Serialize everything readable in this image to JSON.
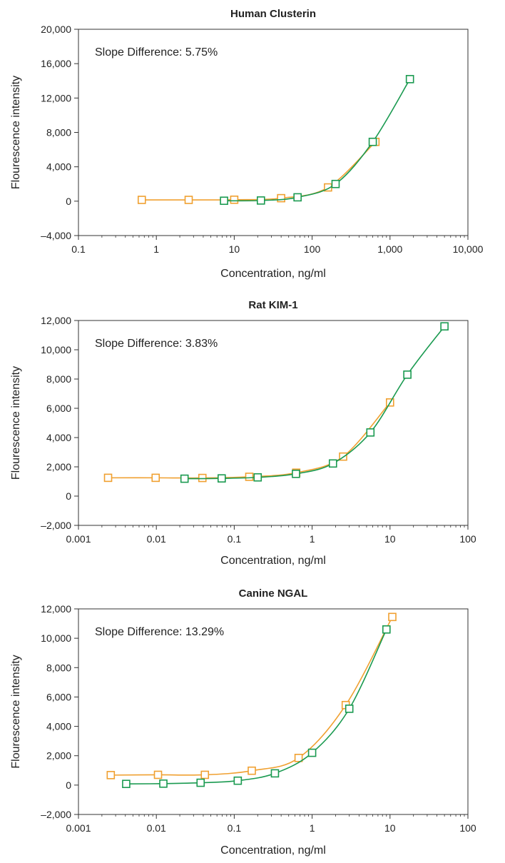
{
  "chart_data": [
    {
      "type": "line",
      "title": "Human Clusterin",
      "xlabel": "Concentration, ng/ml",
      "ylabel": "Flourescence intensity",
      "x_scale": "log",
      "xlim": [
        0.1,
        10000
      ],
      "ylim": [
        -4000,
        20000
      ],
      "x_ticks": [
        0.1,
        1,
        10,
        100,
        1000,
        10000
      ],
      "x_tick_labels": [
        "0.1",
        "1",
        "10",
        "100",
        "1,000",
        "10,000"
      ],
      "y_ticks": [
        -4000,
        0,
        4000,
        8000,
        12000,
        16000,
        20000
      ],
      "y_tick_labels": [
        "–4,000",
        "0",
        "4,000",
        "8,000",
        "12,000",
        "16,000",
        "20,000"
      ],
      "annotation": "Slope Difference: 5.75%",
      "grid": false,
      "series": [
        {
          "color": "#f0a030",
          "points": [
            [
              0.65,
              150
            ],
            [
              2.6,
              150
            ],
            [
              10,
              170
            ],
            [
              40,
              350
            ],
            [
              160,
              1600
            ],
            [
              650,
              6900
            ]
          ]
        },
        {
          "color": "#1a9a50",
          "points": [
            [
              7.4,
              50
            ],
            [
              22,
              80
            ],
            [
              65,
              450
            ],
            [
              200,
              2000
            ],
            [
              600,
              6900
            ],
            [
              1800,
              14200
            ]
          ]
        }
      ]
    },
    {
      "type": "line",
      "title": "Rat KIM-1",
      "xlabel": "Concentration, ng/ml",
      "ylabel": "Flourescence intensity",
      "x_scale": "log",
      "xlim": [
        0.001,
        100
      ],
      "ylim": [
        -2000,
        12000
      ],
      "x_ticks": [
        0.001,
        0.01,
        0.1,
        1,
        10,
        100
      ],
      "x_tick_labels": [
        "0.001",
        "0.01",
        "0.1",
        "1",
        "10",
        "100"
      ],
      "y_ticks": [
        -2000,
        0,
        2000,
        4000,
        6000,
        8000,
        10000,
        12000
      ],
      "y_tick_labels": [
        "–2,000",
        "0",
        "2,000",
        "4,000",
        "6,000",
        "8,000",
        "10,000",
        "12,000"
      ],
      "annotation": "Slope Difference: 3.83%",
      "grid": false,
      "series": [
        {
          "color": "#f0a030",
          "points": [
            [
              0.0024,
              1250
            ],
            [
              0.0098,
              1250
            ],
            [
              0.039,
              1240
            ],
            [
              0.156,
              1320
            ],
            [
              0.625,
              1600
            ],
            [
              2.5,
              2700
            ],
            [
              10,
              6400
            ]
          ]
        },
        {
          "color": "#1a9a50",
          "points": [
            [
              0.023,
              1190
            ],
            [
              0.069,
              1210
            ],
            [
              0.2,
              1280
            ],
            [
              0.62,
              1520
            ],
            [
              1.85,
              2230
            ],
            [
              5.6,
              4350
            ],
            [
              16.7,
              8300
            ],
            [
              50,
              11600
            ]
          ]
        }
      ]
    },
    {
      "type": "line",
      "title": "Canine NGAL",
      "xlabel": "Concentration, ng/ml",
      "ylabel": "Flourescence intensity",
      "x_scale": "log",
      "xlim": [
        0.001,
        100
      ],
      "ylim": [
        -2000,
        12000
      ],
      "x_ticks": [
        0.001,
        0.01,
        0.1,
        1,
        10,
        100
      ],
      "x_tick_labels": [
        "0.001",
        "0.01",
        "0.1",
        "1",
        "10",
        "100"
      ],
      "y_ticks": [
        -2000,
        0,
        2000,
        4000,
        6000,
        8000,
        10000,
        12000
      ],
      "y_tick_labels": [
        "–2,000",
        "0",
        "2,000",
        "4,000",
        "6,000",
        "8,000",
        "10,000",
        "12,000"
      ],
      "annotation": "Slope Difference: 13.29%",
      "grid": false,
      "series": [
        {
          "color": "#f0a030",
          "points": [
            [
              0.0026,
              680
            ],
            [
              0.0105,
              700
            ],
            [
              0.042,
              700
            ],
            [
              0.168,
              980
            ],
            [
              0.67,
              1850
            ],
            [
              2.7,
              5450
            ],
            [
              10.7,
              11450
            ]
          ]
        },
        {
          "color": "#1a9a50",
          "points": [
            [
              0.0041,
              80
            ],
            [
              0.0123,
              100
            ],
            [
              0.037,
              160
            ],
            [
              0.111,
              300
            ],
            [
              0.333,
              800
            ],
            [
              1.0,
              2200
            ],
            [
              3.0,
              5200
            ],
            [
              9.0,
              10600
            ]
          ]
        }
      ]
    }
  ]
}
